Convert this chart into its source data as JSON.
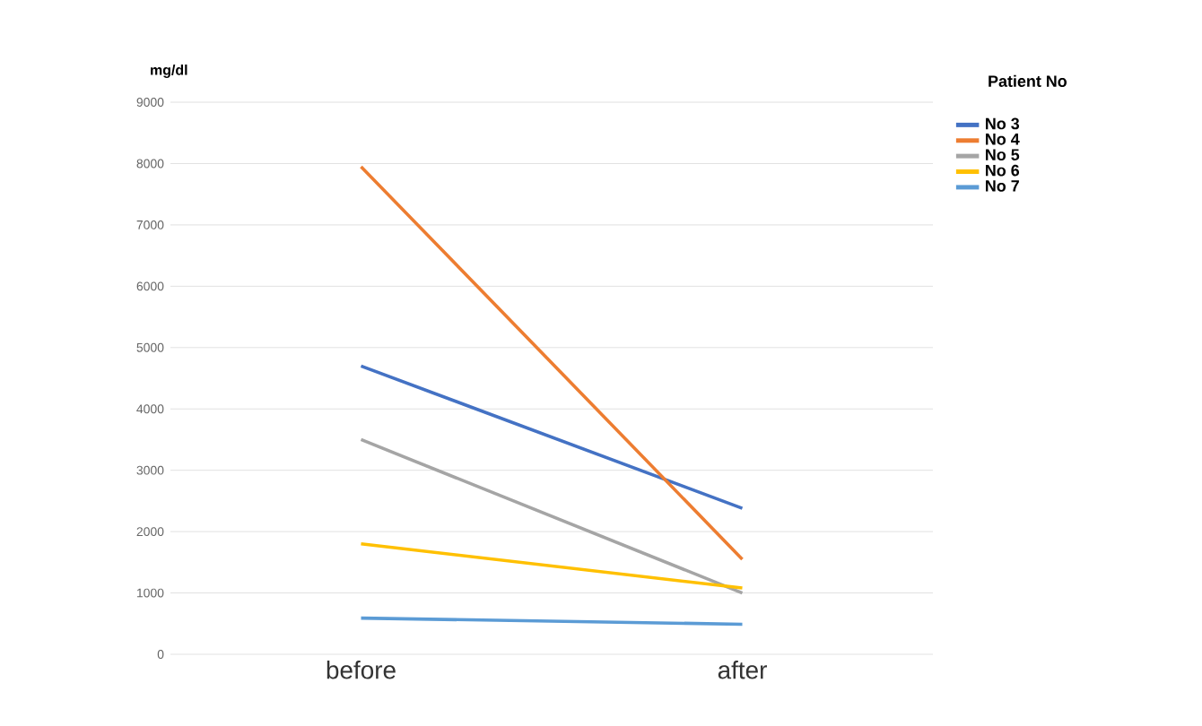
{
  "chart_data": {
    "type": "line",
    "ylabel": "mg/dl",
    "legend_title": "Patient No",
    "categories": [
      "before",
      "after"
    ],
    "series": [
      {
        "name": "No 3",
        "color": "#4472c4",
        "values": [
          4700,
          2380
        ]
      },
      {
        "name": "No 4",
        "color": "#ed7d31",
        "values": [
          7950,
          1550
        ]
      },
      {
        "name": "No 5",
        "color": "#a5a5a5",
        "values": [
          3500,
          1000
        ]
      },
      {
        "name": "No 6",
        "color": "#ffc000",
        "values": [
          1800,
          1080
        ]
      },
      {
        "name": "No 7",
        "color": "#5b9bd5",
        "values": [
          590,
          490
        ]
      }
    ],
    "ylim": [
      0,
      9000
    ],
    "yticks": [
      0,
      1000,
      2000,
      3000,
      4000,
      5000,
      6000,
      7000,
      8000,
      9000
    ],
    "grid": "y",
    "legend": "top right",
    "marker": "none",
    "line_style": "solid"
  }
}
